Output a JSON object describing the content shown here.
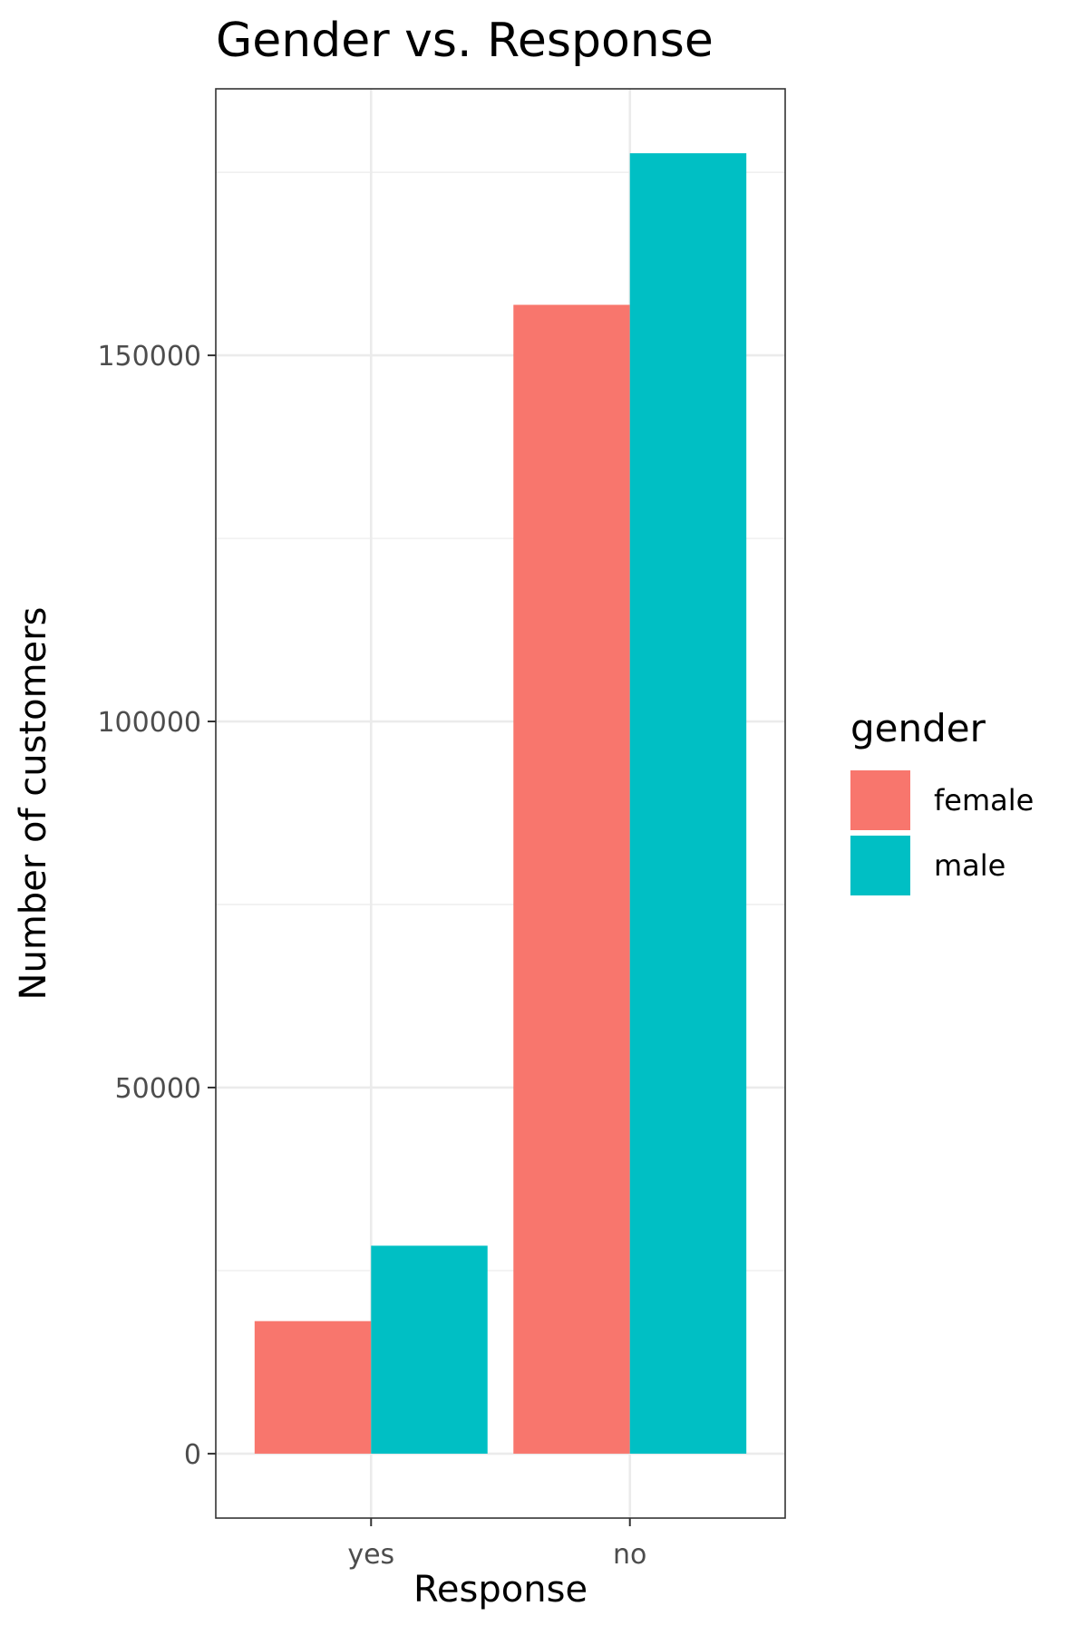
{
  "chart_data": {
    "type": "bar",
    "title": "Gender vs. Response",
    "xlabel": "Response",
    "ylabel": "Number of customers",
    "categories": [
      "yes",
      "no"
    ],
    "series": [
      {
        "name": "female",
        "color": "#F8766D",
        "values": [
          18100,
          156900
        ]
      },
      {
        "name": "male",
        "color": "#00BFC4",
        "values": [
          28400,
          177600
        ]
      }
    ],
    "ylim": [
      -8800,
      186400
    ],
    "yticks": [
      0,
      50000,
      100000,
      150000
    ],
    "ytick_labels": [
      "0",
      "50000",
      "100000",
      "150000"
    ],
    "grid": true,
    "legend": {
      "title": "gender",
      "placement": "right"
    }
  }
}
